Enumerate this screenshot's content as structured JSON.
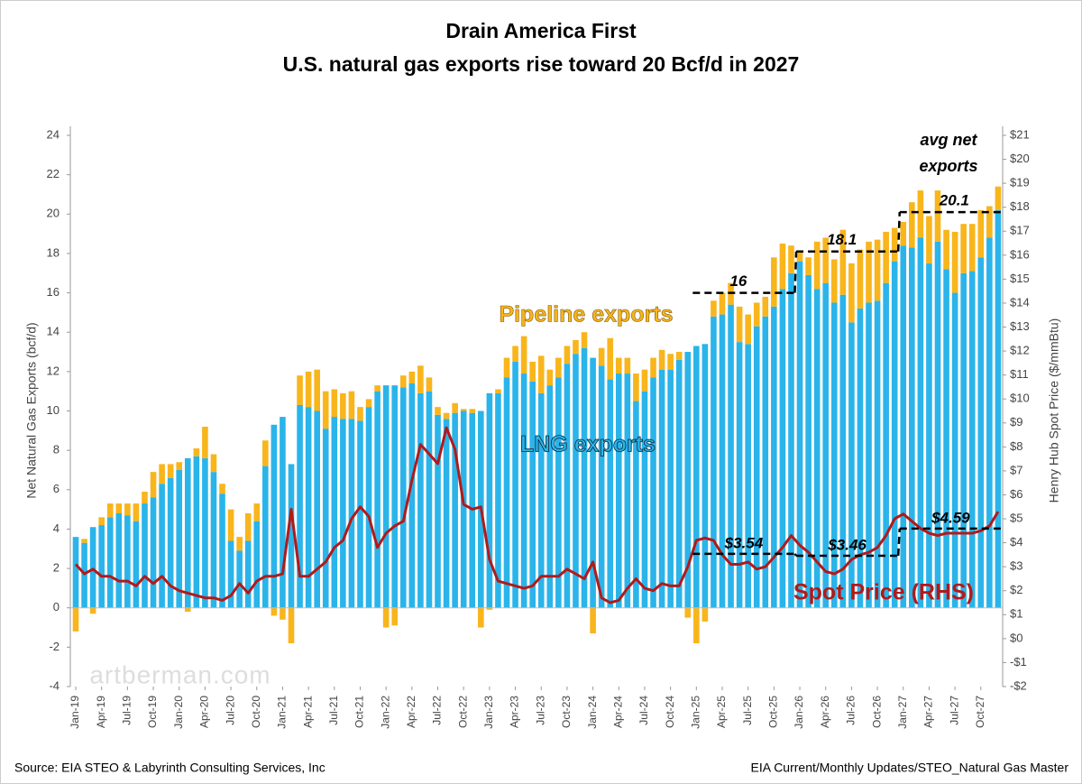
{
  "chart_data": {
    "type": "bar",
    "title": "Drain America First",
    "subtitle": "U.S. natural gas exports rise toward 20 Bcf/d in 2027",
    "ylabel": "Net Natural Gas Exports (bcf/d)",
    "y2label": "Henry Hub Spot Price ($/mmBtu)",
    "categories": [
      "Jan-19",
      null,
      null,
      "Apr-19",
      null,
      null,
      "Jul-19",
      null,
      null,
      "Oct-19",
      null,
      null,
      "Jan-20",
      null,
      null,
      "Apr-20",
      null,
      null,
      "Jul-20",
      null,
      null,
      "Oct-20",
      null,
      null,
      "Jan-21",
      null,
      null,
      "Apr-21",
      null,
      null,
      "Jul-21",
      null,
      null,
      "Oct-21",
      null,
      null,
      "Jan-22",
      null,
      null,
      "Apr-22",
      null,
      null,
      "Jul-22",
      null,
      null,
      "Oct-22",
      null,
      null,
      "Jan-23",
      null,
      null,
      "Apr-23",
      null,
      null,
      "Jul-23",
      null,
      null,
      "Oct-23",
      null,
      null,
      "Jan-24",
      null,
      null,
      "Apr-24",
      null,
      null,
      "Jul-24",
      null,
      null,
      "Oct-24",
      null,
      null,
      "Jan-25",
      null,
      null,
      "Apr-25",
      null,
      null,
      "Jul-25",
      null,
      null,
      "Oct-25",
      null,
      null,
      "Jan-26",
      null,
      null,
      "Apr-26",
      null,
      null,
      "Jul-26",
      null,
      null,
      "Oct-26",
      null,
      null,
      "Jan-27",
      null,
      null,
      "Apr-27",
      null,
      null,
      "Jul-27",
      null,
      null,
      "Oct-27",
      null,
      null
    ],
    "series": [
      {
        "name": "LNG exports",
        "color": "#2ab4ea",
        "values": [
          3.6,
          3.3,
          4.1,
          4.2,
          4.6,
          4.8,
          4.7,
          4.4,
          5.3,
          5.6,
          6.3,
          6.6,
          7.0,
          7.6,
          7.7,
          7.6,
          6.9,
          5.8,
          3.4,
          2.9,
          3.4,
          4.4,
          7.2,
          9.3,
          9.7,
          7.3,
          10.3,
          10.2,
          10.0,
          9.1,
          9.7,
          9.6,
          9.6,
          9.5,
          10.2,
          11.0,
          11.3,
          11.3,
          11.2,
          11.4,
          10.9,
          11.0,
          9.8,
          9.6,
          9.9,
          10.0,
          9.9,
          10.0,
          10.9,
          10.9,
          11.7,
          12.5,
          11.9,
          11.5,
          10.9,
          11.3,
          11.7,
          12.4,
          12.9,
          13.2,
          12.7,
          12.3,
          11.6,
          11.9,
          11.9,
          10.5,
          11.0,
          11.7,
          12.1,
          12.1,
          12.6,
          13.0,
          13.3,
          13.4,
          14.8,
          14.9,
          15.4,
          13.5,
          13.4,
          14.3,
          14.8,
          15.3,
          16.2,
          17.0,
          17.6,
          16.9,
          16.2,
          16.5,
          15.5,
          15.9,
          14.5,
          15.2,
          15.5,
          15.6,
          16.5,
          17.6,
          18.4,
          18.3,
          18.8,
          17.5,
          18.6,
          17.2,
          16.0,
          17.0,
          17.1,
          17.8,
          18.8,
          20.2
        ]
      },
      {
        "name": "Pipeline exports",
        "color": "#f8b51c",
        "values": [
          -1.2,
          0.2,
          -0.3,
          0.4,
          0.7,
          0.5,
          0.6,
          0.9,
          0.6,
          1.3,
          1.0,
          0.7,
          0.4,
          -0.2,
          0.4,
          1.6,
          0.9,
          0.5,
          1.6,
          0.7,
          1.4,
          0.9,
          1.3,
          -0.4,
          -0.6,
          -1.8,
          1.5,
          1.8,
          2.1,
          1.9,
          1.4,
          1.3,
          1.4,
          0.7,
          0.4,
          0.3,
          -1.0,
          -0.9,
          0.6,
          0.6,
          1.4,
          0.7,
          0.4,
          0.3,
          0.5,
          0.1,
          0.2,
          -1.0,
          -0.1,
          0.2,
          1.0,
          0.8,
          1.9,
          1.0,
          1.9,
          0.8,
          1.0,
          0.9,
          0.7,
          0.8,
          -1.3,
          0.9,
          2.1,
          0.8,
          0.8,
          1.4,
          1.1,
          1.0,
          1.0,
          0.8,
          0.4,
          -0.5,
          -1.8,
          -0.7,
          0.8,
          1.1,
          1.1,
          1.8,
          1.5,
          1.2,
          1.0,
          2.5,
          2.3,
          1.4,
          0.5,
          0.9,
          2.4,
          2.3,
          2.2,
          3.3,
          3.0,
          3.0,
          3.1,
          3.1,
          2.6,
          1.7,
          1.2,
          2.3,
          2.4,
          2.4,
          2.6,
          2.0,
          3.1,
          2.5,
          2.4,
          2.4,
          1.6,
          1.2
        ]
      },
      {
        "name": "Spot Price (RHS)",
        "color": "#b11a1a",
        "axis": "y2",
        "values": [
          3.1,
          2.7,
          2.9,
          2.6,
          2.6,
          2.4,
          2.4,
          2.2,
          2.6,
          2.3,
          2.6,
          2.2,
          2.0,
          1.9,
          1.8,
          1.7,
          1.7,
          1.6,
          1.8,
          2.3,
          1.9,
          2.4,
          2.6,
          2.6,
          2.7,
          5.4,
          2.6,
          2.6,
          2.9,
          3.2,
          3.8,
          4.1,
          5.0,
          5.5,
          5.1,
          3.8,
          4.4,
          4.7,
          4.9,
          6.6,
          8.1,
          7.7,
          7.3,
          8.8,
          7.9,
          5.6,
          5.4,
          5.5,
          3.3,
          2.4,
          2.3,
          2.2,
          2.1,
          2.2,
          2.6,
          2.6,
          2.6,
          2.9,
          2.7,
          2.5,
          3.2,
          1.7,
          1.5,
          1.6,
          2.1,
          2.5,
          2.1,
          2.0,
          2.3,
          2.2,
          2.2,
          3.0,
          4.1,
          4.2,
          4.1,
          3.5,
          3.1,
          3.1,
          3.2,
          2.9,
          3.0,
          3.4,
          3.8,
          4.3,
          3.9,
          3.6,
          3.2,
          2.8,
          2.7,
          2.9,
          3.3,
          3.5,
          3.6,
          3.8,
          4.3,
          5.0,
          5.2,
          4.9,
          4.6,
          4.4,
          4.3,
          4.4,
          4.4,
          4.4,
          4.4,
          4.5,
          4.7,
          5.3
        ]
      }
    ],
    "ylim": [
      -4,
      24
    ],
    "yticks": [
      -4,
      -2,
      0,
      2,
      4,
      6,
      8,
      10,
      12,
      14,
      16,
      18,
      20,
      22,
      24
    ],
    "y2lim": [
      -2,
      21
    ],
    "y2ticks": [
      {
        "value": -2,
        "label": "-$2"
      },
      {
        "value": -1,
        "label": "-$1"
      },
      {
        "value": 0,
        "label": "$0"
      },
      {
        "value": 1,
        "label": "$1"
      },
      {
        "value": 2,
        "label": "$2"
      },
      {
        "value": 3,
        "label": "$3"
      },
      {
        "value": 4,
        "label": "$4"
      },
      {
        "value": 5,
        "label": "$5"
      },
      {
        "value": 6,
        "label": "$6"
      },
      {
        "value": 7,
        "label": "$7"
      },
      {
        "value": 8,
        "label": "$8"
      },
      {
        "value": 9,
        "label": "$9"
      },
      {
        "value": 10,
        "label": "$10"
      },
      {
        "value": 11,
        "label": "$11"
      },
      {
        "value": 12,
        "label": "$12"
      },
      {
        "value": 13,
        "label": "$13"
      },
      {
        "value": 14,
        "label": "$14"
      },
      {
        "value": 15,
        "label": "$15"
      },
      {
        "value": 16,
        "label": "$16"
      },
      {
        "value": 17,
        "label": "$17"
      },
      {
        "value": 18,
        "label": "$18"
      },
      {
        "value": 19,
        "label": "$19"
      },
      {
        "value": 20,
        "label": "$20"
      },
      {
        "value": 21,
        "label": "$21"
      }
    ],
    "grid": false,
    "annotations": {
      "net_export_avg": {
        "title": [
          "avg net",
          "exports"
        ],
        "values": [
          16,
          18.1,
          20.1
        ]
      },
      "price_avg": {
        "values": [
          3.54,
          3.46,
          4.59
        ],
        "value_labels": [
          "$3.54",
          "$3.46",
          "$4.59"
        ]
      }
    },
    "watermark": "artberman.com",
    "source_left": "Source: EIA STEO & Labyrinth Consulting Services, Inc",
    "source_right": "EIA Current/Monthly Updates/STEO_Natural Gas Master"
  }
}
